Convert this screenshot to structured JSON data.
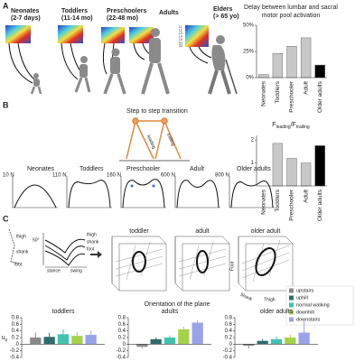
{
  "figure": {
    "panel_labels": [
      "A",
      "B",
      "C"
    ],
    "groups": [
      [
        "Neonates",
        "(2-7 days)"
      ],
      [
        "Toddlers",
        "(11-14 mo)"
      ],
      [
        "Preschoolers",
        "(22-48 mo)"
      ],
      [
        "Adults"
      ],
      [
        "Elders",
        "(> 65 yo)"
      ]
    ],
    "segments": [
      "L1",
      "L2",
      "L3",
      "L4",
      "L5",
      "S1",
      "S2"
    ],
    "step_title": "Step to step transition",
    "legs": [
      "leading",
      "trailing"
    ],
    "force_plots": [
      {
        "name": "Neonates",
        "scale": "10 N"
      },
      {
        "name": "Toddlers",
        "scale": "110 N"
      },
      {
        "name": "Preschooler",
        "scale": "160 N"
      },
      {
        "name": "Adult",
        "scale": "600 N"
      },
      {
        "name": "Older adults",
        "scale": "800 N"
      }
    ],
    "stick": [
      "thigh",
      "shank",
      "foot"
    ],
    "angle": "50°",
    "phases": [
      "stance",
      "swing"
    ],
    "curve_labels": [
      "thigh",
      "shank",
      "foot"
    ],
    "cubes": [
      "toddler",
      "adult",
      "older adult"
    ],
    "axes3d": [
      "Foot",
      "Shank",
      "Thigh"
    ],
    "orientation_title": "Orientation of the plane"
  },
  "chart_data": [
    {
      "type": "bar",
      "title": [
        "Delay between lumbar and sacral",
        "motor pool activation"
      ],
      "categories": [
        "Neonates",
        "Toddlers",
        "Preschooler",
        "Adult",
        "Older adults"
      ],
      "values": [
        3,
        23,
        30,
        38,
        12
      ],
      "colors": [
        "#c8c8c8",
        "#c8c8c8",
        "#c8c8c8",
        "#c8c8c8",
        "#000000"
      ],
      "ylim": [
        0,
        50
      ],
      "yticks": [
        {
          "value": 0,
          "label": "0%"
        },
        {
          "value": 25,
          "label": "25%"
        },
        {
          "value": 50,
          "label": "50%"
        }
      ]
    },
    {
      "type": "bar",
      "title": [
        "F",
        "leading",
        "/F",
        "trailing"
      ],
      "categories": [
        "Neonates",
        "Toddlers",
        "Preschooler",
        "Adult",
        "Older adults"
      ],
      "values": [
        null,
        1.85,
        1.2,
        1.0,
        1.75
      ],
      "colors": [
        "#c8c8c8",
        "#c8c8c8",
        "#c8c8c8",
        "#c8c8c8",
        "#000000"
      ],
      "ylim": [
        0,
        2.2
      ],
      "yticks": [
        1,
        2
      ]
    },
    {
      "type": "grouped-bar",
      "title": "toddlers",
      "ylabel": [
        "u",
        "z"
      ],
      "legend": "right",
      "series": [
        {
          "name": "upstairs",
          "color": "#8a8a8a",
          "values": [
            0.2
          ],
          "errors": [
            0.15
          ]
        },
        {
          "name": "uphill",
          "color": "#2f6b6b",
          "values": [
            0.22
          ],
          "errors": [
            0.12
          ]
        },
        {
          "name": "normal walking",
          "color": "#3ec4b0",
          "values": [
            0.3
          ],
          "errors": [
            0.15
          ]
        },
        {
          "name": "downhill",
          "color": "#a6d14a",
          "values": [
            0.25
          ],
          "errors": [
            0.12
          ]
        },
        {
          "name": "downstairs",
          "color": "#9aa2ea",
          "values": [
            0.28
          ],
          "errors": [
            0.12
          ]
        }
      ],
      "ylim": [
        -0.4,
        0.8
      ],
      "yticks": [
        -0.4,
        -0.2,
        0,
        0.2,
        0.4,
        0.6,
        0.8
      ]
    },
    {
      "type": "grouped-bar",
      "title": "adults",
      "series": [
        {
          "color": "#8a8a8a",
          "values": [
            -0.08
          ],
          "errors": [
            0.05
          ]
        },
        {
          "color": "#2f6b6b",
          "values": [
            0.15
          ],
          "errors": [
            0.05
          ]
        },
        {
          "color": "#3ec4b0",
          "values": [
            0.2
          ],
          "errors": [
            0.06
          ]
        },
        {
          "color": "#a6d14a",
          "values": [
            0.45
          ],
          "errors": [
            0.08
          ]
        },
        {
          "color": "#9aa2ea",
          "values": [
            0.65
          ],
          "errors": [
            0.08
          ]
        }
      ],
      "ylim": [
        -0.4,
        0.8
      ],
      "yticks": [
        -0.4,
        -0.2,
        0,
        0.2,
        0.4,
        0.6,
        0.8
      ]
    },
    {
      "type": "grouped-bar",
      "title": "older adults",
      "series": [
        {
          "color": "#8a8a8a",
          "values": [
            -0.05
          ],
          "errors": [
            0.08
          ]
        },
        {
          "color": "#2f6b6b",
          "values": [
            0.1
          ],
          "errors": [
            0.06
          ]
        },
        {
          "color": "#3ec4b0",
          "values": [
            0.15
          ],
          "errors": [
            0.08
          ]
        },
        {
          "color": "#a6d14a",
          "values": [
            0.2
          ],
          "errors": [
            0.08
          ]
        },
        {
          "color": "#9aa2ea",
          "values": [
            0.35
          ],
          "errors": [
            0.4
          ]
        }
      ],
      "ylim": [
        -0.4,
        0.8
      ],
      "yticks": [
        -0.4,
        -0.2,
        0,
        0.2,
        0.4,
        0.6,
        0.8
      ]
    }
  ]
}
